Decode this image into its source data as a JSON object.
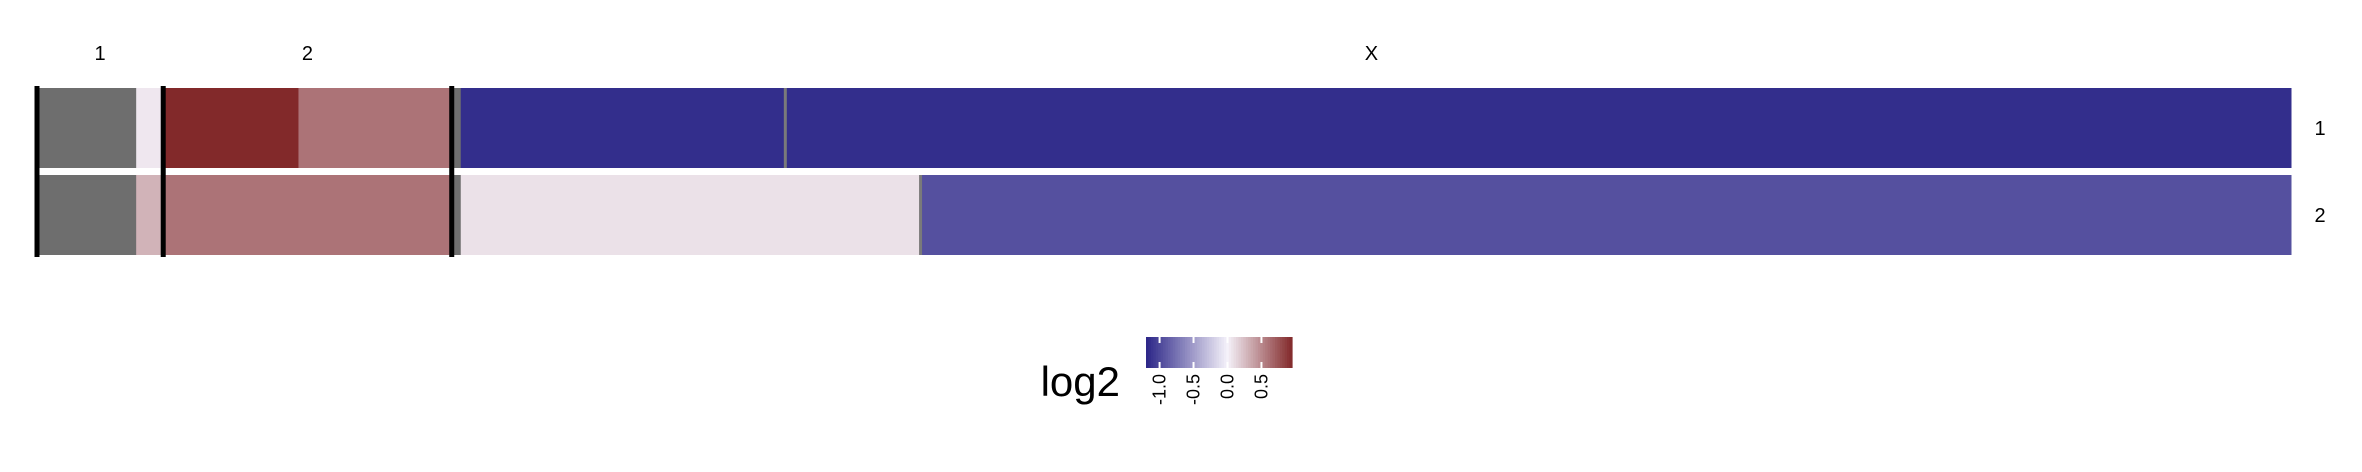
{
  "chart_data": {
    "type": "heatmap",
    "title": "",
    "chromosomes": [
      {
        "label": "1",
        "start": 0,
        "end": 0.7
      },
      {
        "label": "2",
        "start": 0.7,
        "end": 2.3
      },
      {
        "label": "X",
        "start": 2.3,
        "end": 12.5
      }
    ],
    "rows": [
      {
        "label": "1",
        "segments": [
          {
            "start": 0,
            "end": 0.55,
            "value": null
          },
          {
            "start": 0.55,
            "end": 0.7,
            "value": 0.05
          },
          {
            "start": 0.7,
            "end": 1.45,
            "value": 0.95
          },
          {
            "start": 1.45,
            "end": 2.3,
            "value": 0.6
          },
          {
            "start": 2.3,
            "end": 2.35,
            "value": null
          },
          {
            "start": 2.35,
            "end": 4.15,
            "value": -1.15
          },
          {
            "start": 4.15,
            "end": 12.5,
            "value": -1.15
          }
        ],
        "breakpoints": [
          4.15
        ]
      },
      {
        "label": "2",
        "segments": [
          {
            "start": 0,
            "end": 0.55,
            "value": null
          },
          {
            "start": 0.55,
            "end": 0.7,
            "value": 0.3
          },
          {
            "start": 0.7,
            "end": 2.3,
            "value": 0.6
          },
          {
            "start": 2.3,
            "end": 2.35,
            "value": null
          },
          {
            "start": 2.35,
            "end": 4.9,
            "value": 0.08
          },
          {
            "start": 4.9,
            "end": 12.5,
            "value": -0.95
          }
        ],
        "breakpoints": [
          4.9
        ]
      }
    ],
    "na_color": "#6e6e6e",
    "separator_color": "#000000",
    "legend": {
      "title": "log2",
      "range": [
        -1.2,
        0.95
      ],
      "ticks": [
        {
          "value": -1.0,
          "label": "-1.0"
        },
        {
          "value": -0.5,
          "label": "-0.5"
        },
        {
          "value": 0.0,
          "label": "0.0"
        },
        {
          "value": 0.5,
          "label": "0.5"
        }
      ],
      "colors": {
        "low": "#2b2587",
        "mid": "#f5f2fa",
        "high": "#82292a"
      }
    }
  }
}
